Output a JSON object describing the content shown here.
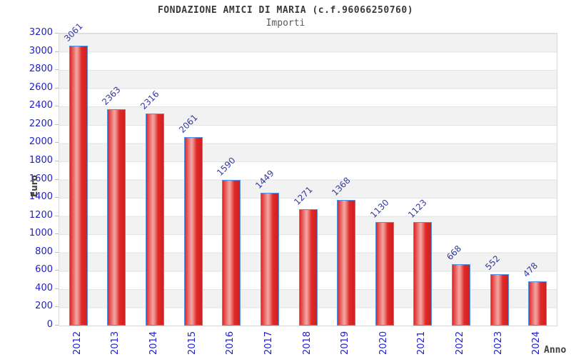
{
  "chart_data": {
    "type": "bar",
    "title": "FONDAZIONE AMICI DI MARIA (c.f.96066250760)",
    "subtitle": "Importi",
    "xlabel": "Anno",
    "ylabel": "Euro",
    "categories": [
      "2012",
      "2013",
      "2014",
      "2015",
      "2016",
      "2017",
      "2018",
      "2019",
      "2020",
      "2021",
      "2022",
      "2023",
      "2024"
    ],
    "values": [
      3061,
      2363,
      2316,
      2061,
      1590,
      1449,
      1271,
      1368,
      1130,
      1123,
      668,
      552,
      478
    ],
    "ylim": [
      0,
      3200
    ],
    "ytick_step": 200,
    "grid": true,
    "legend_position": "none",
    "band_style": "alternating-horizontal",
    "colors": {
      "bar_fill_main": "#e02a28",
      "bar_fill_highlight": "#f5a5a3",
      "bar_fill_dark": "#cf201f",
      "bar_border": "#4f93e8",
      "y_tick_label": "#2020cf",
      "x_tick_label": "#2020cf",
      "value_label": "#333a9e",
      "band_gray": "#f2f2f2",
      "gridline": "#e3e3e3",
      "plot_border": "#d9d9d9",
      "title": "#3a3a3a",
      "subtitle": "#585858",
      "axis_name": "#3f3f3f"
    }
  }
}
